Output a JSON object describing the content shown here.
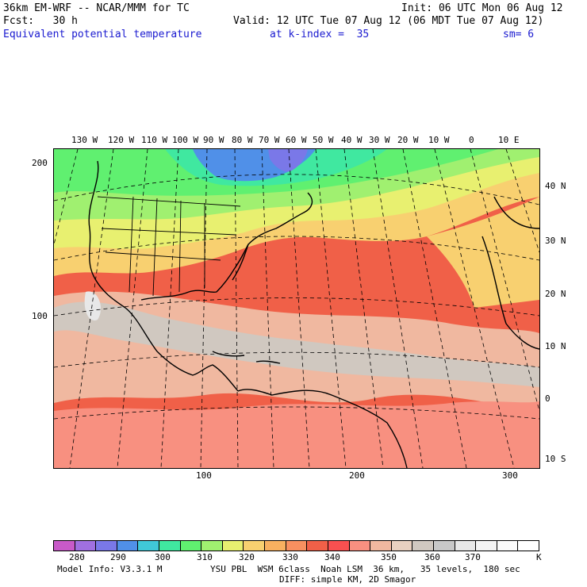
{
  "header": {
    "model_line": "36km EM-WRF -- NCAR/MMM for TC",
    "init_line": "Init: 06 UTC Mon 06 Aug 12",
    "fcst_line": "Fcst:   30 h",
    "valid_line": "Valid: 12 UTC Tue 07 Aug 12 (06 MDT Tue 07 Aug 12)",
    "field_name": "Equivalent potential temperature",
    "level": "at k-index =  35",
    "smoothing": "sm= 6"
  },
  "map": {
    "top_lon_labels": [
      "130 W",
      "120 W",
      "110 W",
      "100 W",
      "90 W",
      "80 W",
      "70 W",
      "60 W",
      "50 W",
      "40 W",
      "30 W",
      "20 W",
      "10 W",
      "0",
      "10 E"
    ],
    "right_lat_labels": [
      "40 N",
      "30 N",
      "20 N",
      "10 N",
      "0",
      "10 S"
    ],
    "left_grid_labels": [
      "200",
      "100"
    ],
    "bottom_grid_labels": [
      "100",
      "200",
      "300"
    ]
  },
  "colorbar": {
    "labels": [
      "280",
      "290",
      "300",
      "310",
      "320",
      "330",
      "340",
      "350",
      "360",
      "370",
      "K"
    ],
    "colors": [
      "#c85ac8",
      "#a070e0",
      "#7a78e8",
      "#5090e8",
      "#40c8d8",
      "#40e8a0",
      "#60f070",
      "#a0f070",
      "#e8f070",
      "#f8d070",
      "#f8b060",
      "#f89060",
      "#f06048",
      "#f85050",
      "#f89080",
      "#f0b8a0",
      "#e8d0c0",
      "#d0c8c0",
      "#c8c8c8",
      "#e8e8e8",
      "#f4f4f4",
      "#fafafa",
      "#ffffff"
    ]
  },
  "footer": {
    "model_info": "Model Info: V3.3.1 M",
    "physics_1": "YSU PBL  WSM 6class  Noah LSM  36 km,   35 levels,  180 sec",
    "physics_2": "DIFF: simple KM, 2D Smagor"
  }
}
